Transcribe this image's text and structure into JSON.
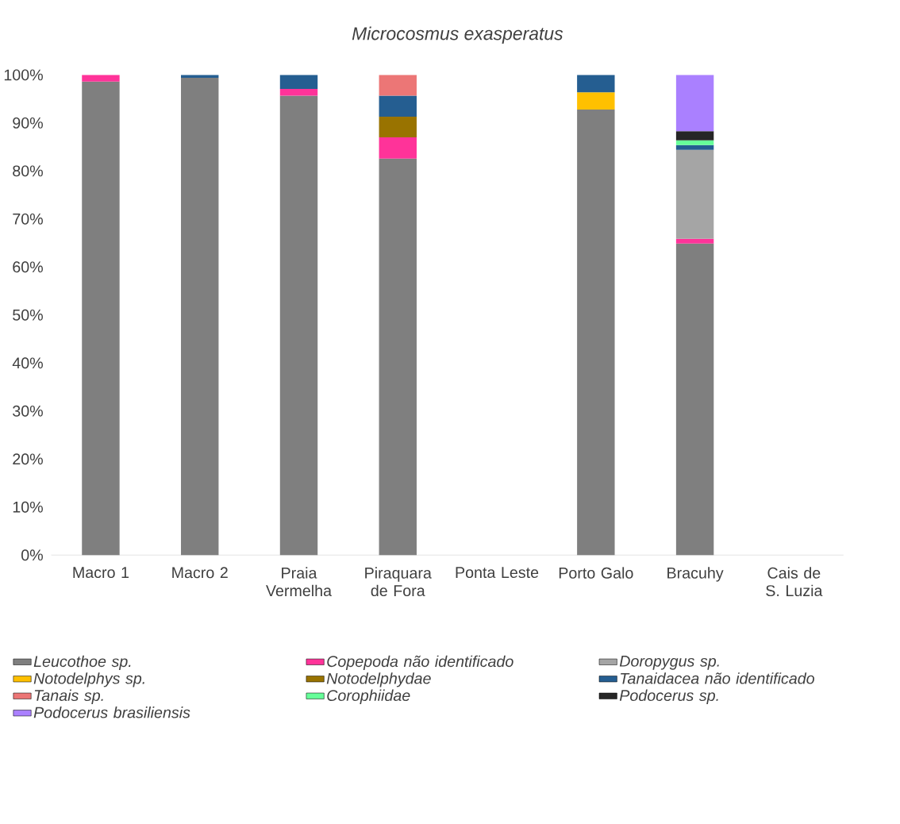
{
  "chart_data": {
    "type": "bar",
    "stacked": true,
    "title": "Microcosmus exasperatus",
    "categories": [
      "Macro 1",
      "Macro 2",
      "Praia Vermelha",
      "Piraquara de Fora",
      "Ponta Leste",
      "Porto Galo",
      "Bracuhy",
      "Cais de S. Luzia"
    ],
    "series": [
      {
        "name": "Leucothoe sp.",
        "color": "#7f7f7f",
        "values": [
          98.6,
          99.4,
          95.7,
          82.6,
          null,
          92.8,
          64.9,
          null
        ]
      },
      {
        "name": "Copepoda não identificado",
        "color": "#ff3399",
        "values": [
          1.4,
          null,
          1.4,
          4.4,
          null,
          null,
          1.0,
          null
        ]
      },
      {
        "name": "Doropygus sp.",
        "color": "#a5a5a5",
        "values": [
          null,
          null,
          null,
          null,
          null,
          null,
          18.5,
          null
        ]
      },
      {
        "name": "Notodelphys sp.",
        "color": "#ffc000",
        "values": [
          null,
          null,
          null,
          null,
          null,
          3.6,
          null,
          null
        ]
      },
      {
        "name": "Notodelphydae",
        "color": "#997300",
        "values": [
          null,
          null,
          null,
          4.3,
          null,
          null,
          null,
          null
        ]
      },
      {
        "name": "Tanaidacea não identificado",
        "color": "#255e91",
        "values": [
          null,
          0.6,
          2.9,
          4.4,
          null,
          3.6,
          1.0,
          null
        ]
      },
      {
        "name": "Tanais sp.",
        "color": "#ec7676",
        "values": [
          null,
          null,
          null,
          4.3,
          null,
          null,
          null,
          null
        ]
      },
      {
        "name": "Corophiidae",
        "color": "#66ff99",
        "values": [
          null,
          null,
          null,
          null,
          null,
          null,
          1.0,
          null
        ]
      },
      {
        "name": "Podocerus sp.",
        "color": "#262626",
        "values": [
          null,
          null,
          null,
          null,
          null,
          null,
          1.9,
          null
        ]
      },
      {
        "name": "Podocerus brasiliensis",
        "color": "#aa80ff",
        "values": [
          null,
          null,
          null,
          null,
          null,
          null,
          11.7,
          null
        ]
      }
    ],
    "ylim": [
      0,
      100
    ],
    "yticks": [
      {
        "value": 0,
        "label": "0%"
      },
      {
        "value": 10,
        "label": "10%"
      },
      {
        "value": 20,
        "label": "20%"
      },
      {
        "value": 30,
        "label": "30%"
      },
      {
        "value": 40,
        "label": "40%"
      },
      {
        "value": 50,
        "label": "50%"
      },
      {
        "value": 60,
        "label": "60%"
      },
      {
        "value": 70,
        "label": "70%"
      },
      {
        "value": 80,
        "label": "80%"
      },
      {
        "value": 90,
        "label": "90%"
      },
      {
        "value": 100,
        "label": "100%"
      }
    ],
    "legend": "bottom"
  }
}
